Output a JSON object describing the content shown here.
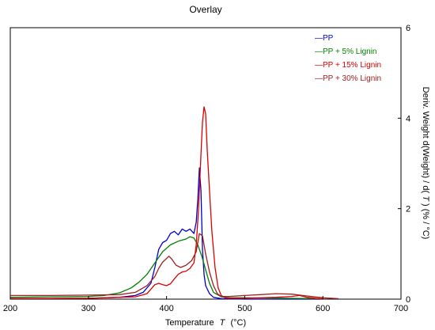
{
  "chart_data": {
    "type": "line",
    "title": "Overlay",
    "xlabel": "Temperature",
    "xlabel_symbol": "T",
    "xlabel_unit": "(°C)",
    "ylabel_prefix": "Deriv. Weight d(Weight) / d(",
    "ylabel_symbol": "T",
    "ylabel_suffix": ") (% / °C)",
    "y_axis_side": "right",
    "xlim": [
      200,
      700
    ],
    "ylim": [
      0,
      6
    ],
    "xticks": [
      200,
      300,
      400,
      500,
      600,
      700
    ],
    "yticks": [
      0,
      2,
      4,
      6
    ],
    "grid": false,
    "legend_position": "top-right",
    "legend_marker": "—",
    "series": [
      {
        "name": "PP",
        "color": "#0000cc",
        "x": [
          200,
          300,
          340,
          360,
          370,
          380,
          385,
          390,
          395,
          400,
          405,
          410,
          415,
          420,
          425,
          430,
          435,
          438,
          440,
          442,
          444,
          446,
          448,
          450,
          455,
          460,
          470,
          500,
          600
        ],
        "y": [
          0.01,
          0.02,
          0.04,
          0.08,
          0.15,
          0.35,
          0.7,
          1.1,
          1.25,
          1.3,
          1.45,
          1.5,
          1.42,
          1.55,
          1.5,
          1.55,
          1.45,
          1.7,
          2.2,
          2.9,
          2.4,
          1.1,
          0.55,
          0.3,
          0.12,
          0.04,
          0.01,
          0.0,
          0.0
        ]
      },
      {
        "name": "PP + 5% Lignin",
        "color": "#008000",
        "x": [
          200,
          250,
          300,
          320,
          340,
          355,
          365,
          375,
          385,
          395,
          405,
          415,
          425,
          430,
          435,
          440,
          445,
          450,
          455,
          460,
          470,
          480,
          500,
          550,
          600
        ],
        "y": [
          0.04,
          0.05,
          0.06,
          0.08,
          0.14,
          0.25,
          0.38,
          0.55,
          0.8,
          1.05,
          1.2,
          1.28,
          1.33,
          1.38,
          1.35,
          1.2,
          0.95,
          0.65,
          0.35,
          0.15,
          0.05,
          0.03,
          0.03,
          0.02,
          0.01
        ]
      },
      {
        "name": "PP + 15% Lignin",
        "color": "#dd0000",
        "x": [
          200,
          300,
          360,
          375,
          380,
          385,
          390,
          395,
          400,
          405,
          410,
          415,
          420,
          425,
          430,
          435,
          438,
          441,
          444,
          446,
          448,
          450,
          452,
          455,
          458,
          462,
          466,
          470,
          475,
          480,
          500,
          540,
          560,
          570,
          580,
          600
        ],
        "y": [
          0.01,
          0.02,
          0.05,
          0.12,
          0.22,
          0.32,
          0.35,
          0.32,
          0.3,
          0.34,
          0.45,
          0.55,
          0.6,
          0.62,
          0.68,
          0.8,
          1.2,
          2.0,
          3.2,
          3.9,
          4.25,
          4.1,
          3.3,
          2.4,
          1.5,
          0.7,
          0.25,
          0.08,
          0.03,
          0.02,
          0.02,
          0.04,
          0.06,
          0.08,
          0.04,
          0.0
        ]
      },
      {
        "name": "PP + 30% Lignin",
        "color": "#a02020",
        "x": [
          200,
          250,
          300,
          340,
          360,
          375,
          385,
          390,
          395,
          400,
          403,
          407,
          412,
          418,
          425,
          432,
          438,
          442,
          446,
          450,
          455,
          460,
          465,
          470,
          480,
          500,
          520,
          540,
          560,
          580,
          600,
          620
        ],
        "y": [
          0.08,
          0.08,
          0.09,
          0.1,
          0.15,
          0.3,
          0.5,
          0.68,
          0.82,
          0.9,
          0.95,
          0.88,
          0.75,
          0.7,
          0.75,
          0.85,
          1.05,
          1.45,
          1.4,
          1.0,
          0.6,
          0.3,
          0.12,
          0.06,
          0.06,
          0.08,
          0.1,
          0.12,
          0.11,
          0.07,
          0.03,
          0.01
        ]
      }
    ]
  }
}
